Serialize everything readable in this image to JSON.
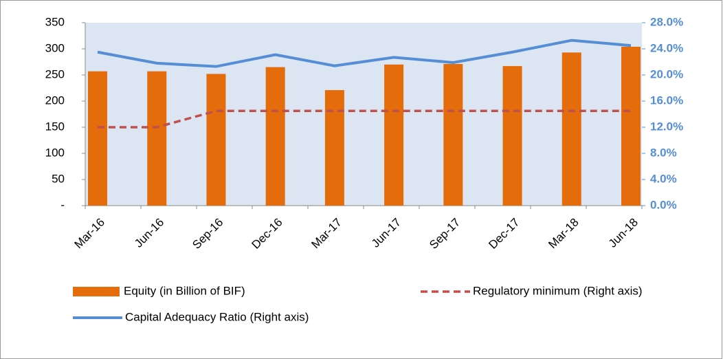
{
  "chart_data": {
    "type": "bar-line",
    "categories": [
      "Mar-16",
      "Jun-16",
      "Sep-16",
      "Dec-16",
      "Mar-17",
      "Jun-17",
      "Sep-17",
      "Dec-17",
      "Mar-18",
      "Jun-18"
    ],
    "series": [
      {
        "name": "Equity (in Billion of BIF)",
        "type": "bar",
        "color": "#e46c0a",
        "values": [
          257,
          257,
          252,
          265,
          221,
          270,
          271,
          267,
          293,
          304
        ]
      },
      {
        "name": "Regulatory minimum (Right axis)",
        "type": "line",
        "dashed": true,
        "axis": "y2",
        "color": "#c0504d",
        "values": [
          12,
          12,
          14.5,
          14.5,
          14.5,
          14.5,
          14.5,
          14.5,
          14.5,
          14.5
        ]
      },
      {
        "name": "Capital Adequacy Ratio (Right axis)",
        "type": "line",
        "axis": "y2",
        "color": "#558ed5",
        "values": [
          23.5,
          21.8,
          21.3,
          23.1,
          21.4,
          22.7,
          21.9,
          23.5,
          25.3,
          24.5
        ]
      }
    ],
    "ylim": [
      0,
      350
    ],
    "yticks": [
      {
        "value": 0,
        "label": "-"
      },
      50,
      100,
      150,
      200,
      250,
      300,
      350
    ],
    "y2lim": [
      0,
      28
    ],
    "y2ticks": [
      {
        "value": 0,
        "label": "0.0%"
      },
      {
        "value": 4,
        "label": "4.0%"
      },
      {
        "value": 8,
        "label": "8.0%"
      },
      {
        "value": 12,
        "label": "12.0%"
      },
      {
        "value": 16,
        "label": "16.0%"
      },
      {
        "value": 20,
        "label": "20.0%"
      },
      {
        "value": 24,
        "label": "24.0%"
      },
      {
        "value": 28,
        "label": "28.0%"
      }
    ]
  }
}
